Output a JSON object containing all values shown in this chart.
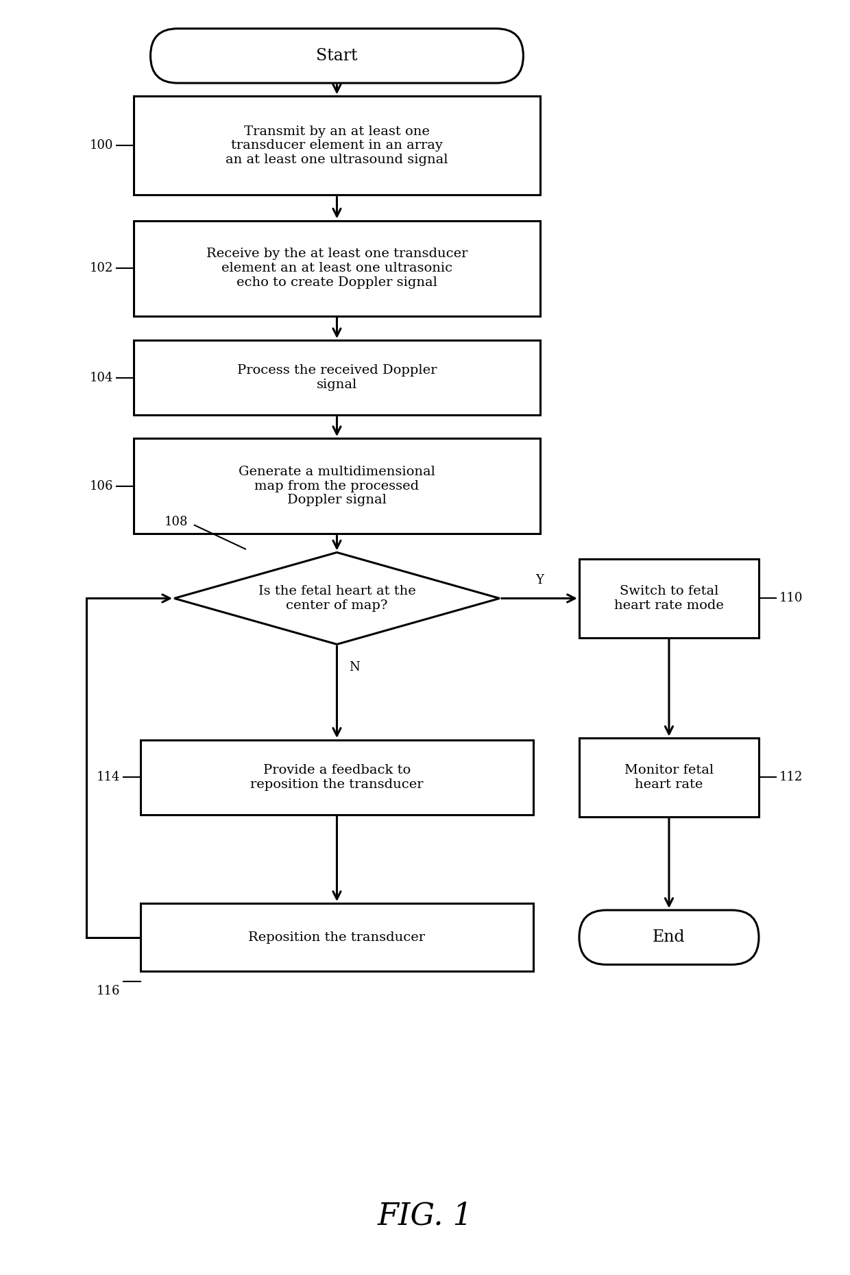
{
  "title": "FIG. 1",
  "bg_color": "#ffffff",
  "line_color": "#000000",
  "text_color": "#000000",
  "start_label": "Start",
  "end_label": "End",
  "box100_text": "Transmit by an at least one\ntransducer element in an array\nan at least one ultrasound signal",
  "box100_num": "100",
  "box102_text": "Receive by the at least one transducer\nelement an at least one ultrasonic\necho to create Doppler signal",
  "box102_num": "102",
  "box104_text": "Process the received Doppler\nsignal",
  "box104_num": "104",
  "box106_text": "Generate a multidimensional\nmap from the processed\nDoppler signal",
  "box106_num": "106",
  "diamond_text": "Is the fetal heart at the\ncenter of map?",
  "diamond_num": "108",
  "box110_text": "Switch to fetal\nheart rate mode",
  "box110_num": "110",
  "box112_text": "Monitor fetal\nheart rate",
  "box112_num": "112",
  "box114_text": "Provide a feedback to\nreposition the transducer",
  "box114_num": "114",
  "box116_text": "Reposition the transducer",
  "box116_num": "116",
  "yes_label": "Y",
  "no_label": "N",
  "font_size_box": 14,
  "font_size_small": 13,
  "font_size_title": 32
}
